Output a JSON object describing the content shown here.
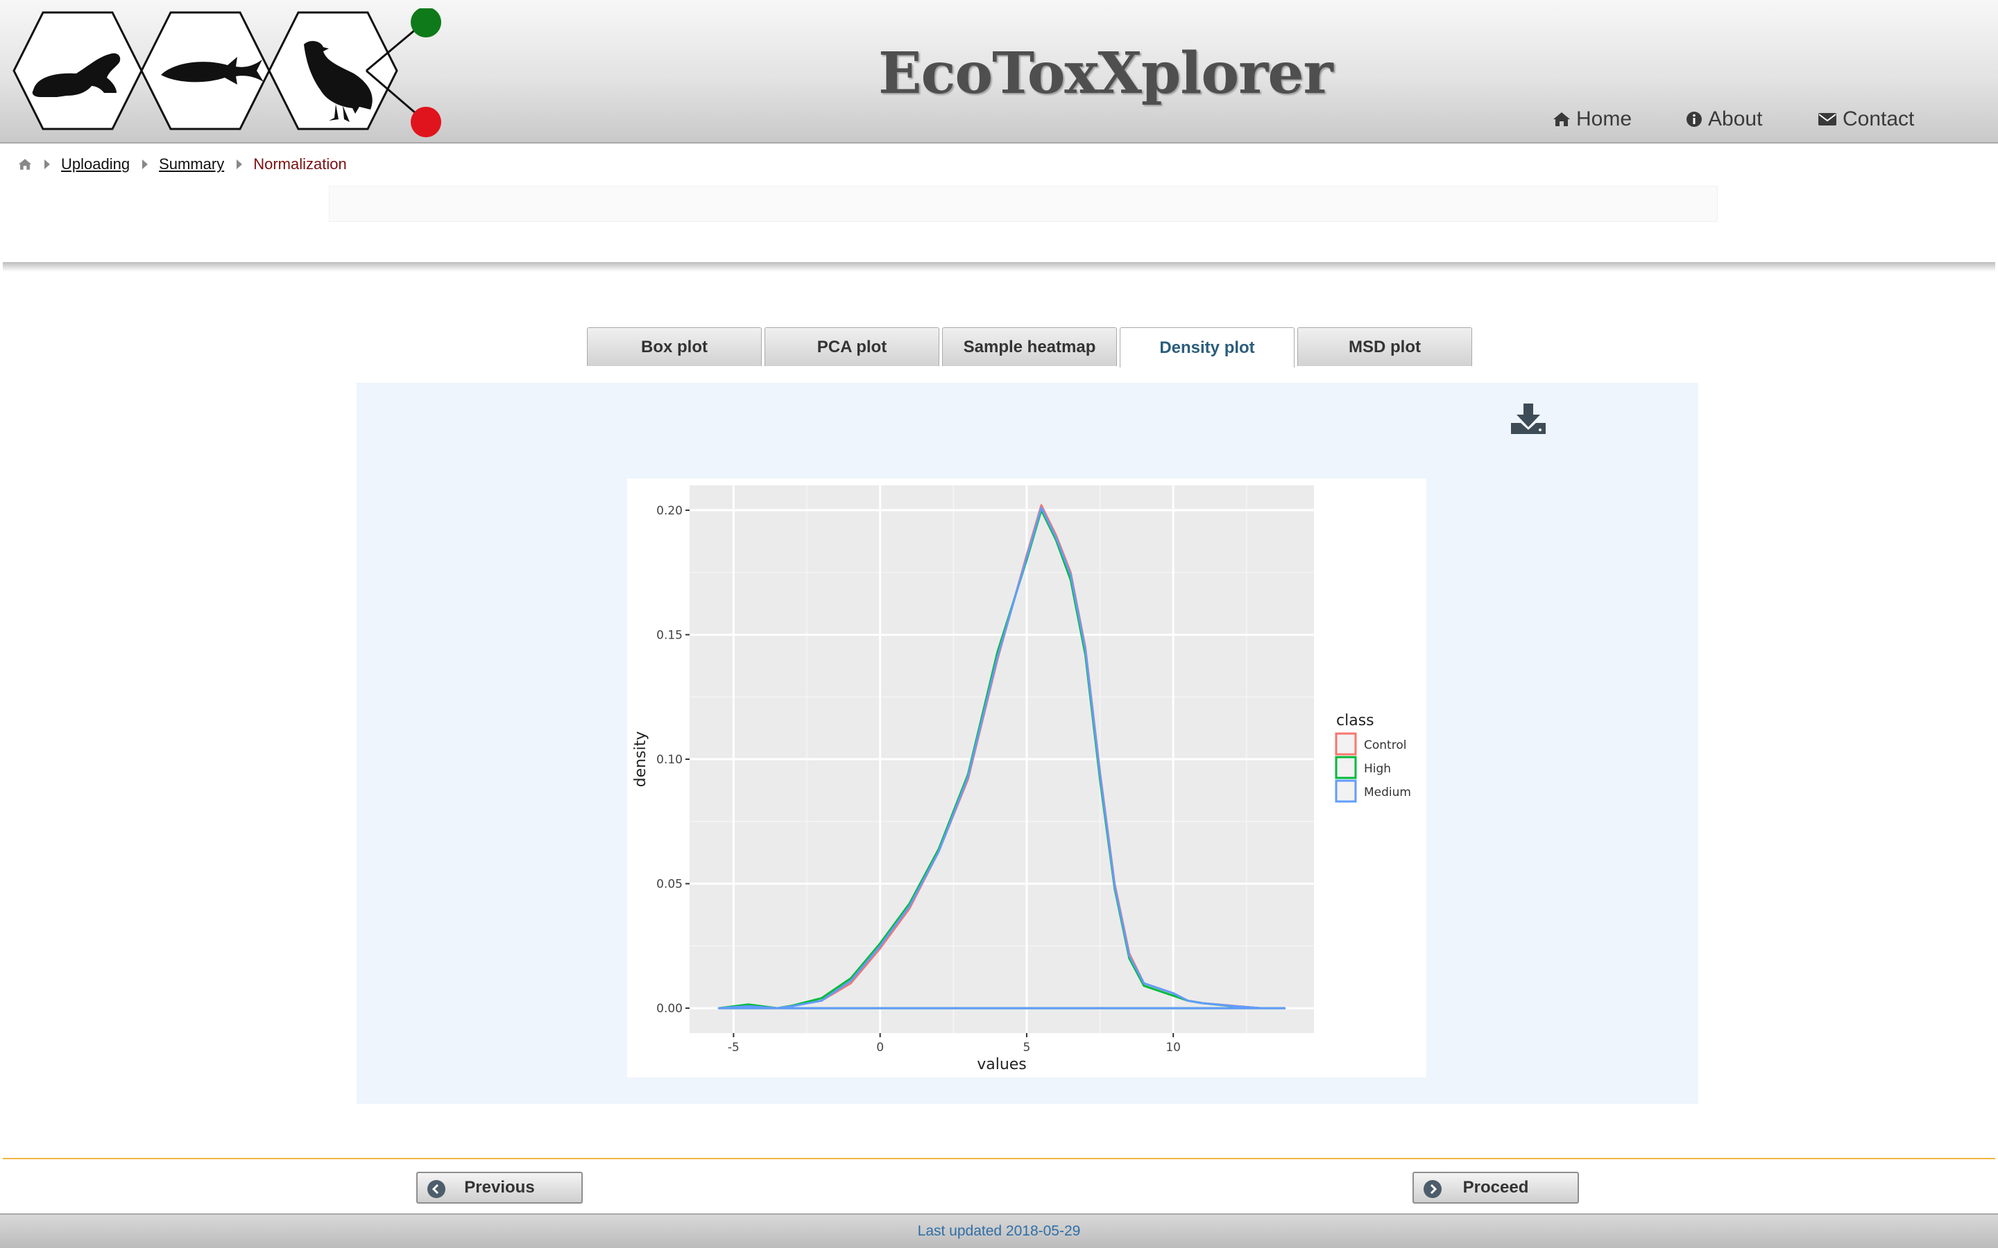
{
  "app": {
    "title": "EcoToxXplorer"
  },
  "nav": {
    "home": "Home",
    "about": "About",
    "contact": "Contact"
  },
  "breadcrumb": {
    "items": [
      "Uploading",
      "Summary"
    ],
    "current": "Normalization"
  },
  "tabs": [
    "Box plot",
    "PCA plot",
    "Sample heatmap",
    "Density plot",
    "MSD plot"
  ],
  "active_tab": "Density plot",
  "icons": {
    "home": "home-icon",
    "about": "info-icon",
    "contact": "envelope-icon",
    "download": "download-icon",
    "previous": "arrow-left-circle-icon",
    "next": "arrow-right-circle-icon"
  },
  "colors": {
    "accent": "#2b5d7c",
    "current_crumb": "#7a1010",
    "divider": "#f2b640",
    "footer_text": "#2f6ea6",
    "logo_green": "#0f7a1a",
    "logo_red": "#e0141d"
  },
  "buttons": {
    "previous": "Previous",
    "next": "Proceed"
  },
  "footer": {
    "text": "Last updated 2018-05-29"
  },
  "chart_data": {
    "type": "line",
    "xlabel": "values",
    "ylabel": "density",
    "xlim": [
      -6.5,
      14.8
    ],
    "ylim": [
      -0.01,
      0.21
    ],
    "xticks": [
      -5,
      0,
      5,
      10
    ],
    "xtick_labels": [
      "-5",
      "0",
      "5",
      "10"
    ],
    "yticks": [
      0.0,
      0.05,
      0.1,
      0.15,
      0.2
    ],
    "ytick_labels": [
      "0.00",
      "0.05",
      "0.10",
      "0.15",
      "0.20"
    ],
    "grid": true,
    "legend": {
      "title": "class",
      "position": "right"
    },
    "x": [
      -5.5,
      -4.5,
      -3.5,
      -3.0,
      -2.0,
      -1.0,
      0.0,
      1.0,
      2.0,
      3.0,
      4.0,
      5.0,
      5.5,
      6.0,
      6.5,
      7.0,
      7.5,
      8.0,
      8.5,
      9.0,
      9.5,
      10.0,
      10.5,
      11.0,
      12.0,
      13.0,
      13.8
    ],
    "series": [
      {
        "name": "Control",
        "color": "#f8766d",
        "values": [
          0.0,
          0.001,
          0.0,
          0.001,
          0.003,
          0.01,
          0.024,
          0.04,
          0.063,
          0.092,
          0.14,
          0.182,
          0.202,
          0.19,
          0.175,
          0.145,
          0.095,
          0.05,
          0.022,
          0.01,
          0.008,
          0.006,
          0.003,
          0.002,
          0.001,
          0.0,
          0.0
        ]
      },
      {
        "name": "High",
        "color": "#00ba38",
        "values": [
          0.0,
          0.0015,
          0.0,
          0.001,
          0.004,
          0.012,
          0.026,
          0.042,
          0.064,
          0.094,
          0.143,
          0.18,
          0.2,
          0.188,
          0.172,
          0.142,
          0.092,
          0.048,
          0.02,
          0.009,
          0.007,
          0.005,
          0.003,
          0.002,
          0.0008,
          0.0,
          0.0
        ]
      },
      {
        "name": "Medium",
        "color": "#619cff",
        "values": [
          0.0,
          0.0008,
          0.0,
          0.0008,
          0.003,
          0.011,
          0.025,
          0.041,
          0.063,
          0.093,
          0.141,
          0.181,
          0.201,
          0.189,
          0.174,
          0.144,
          0.094,
          0.049,
          0.021,
          0.01,
          0.008,
          0.006,
          0.003,
          0.002,
          0.0009,
          0.0,
          0.0
        ]
      }
    ]
  }
}
